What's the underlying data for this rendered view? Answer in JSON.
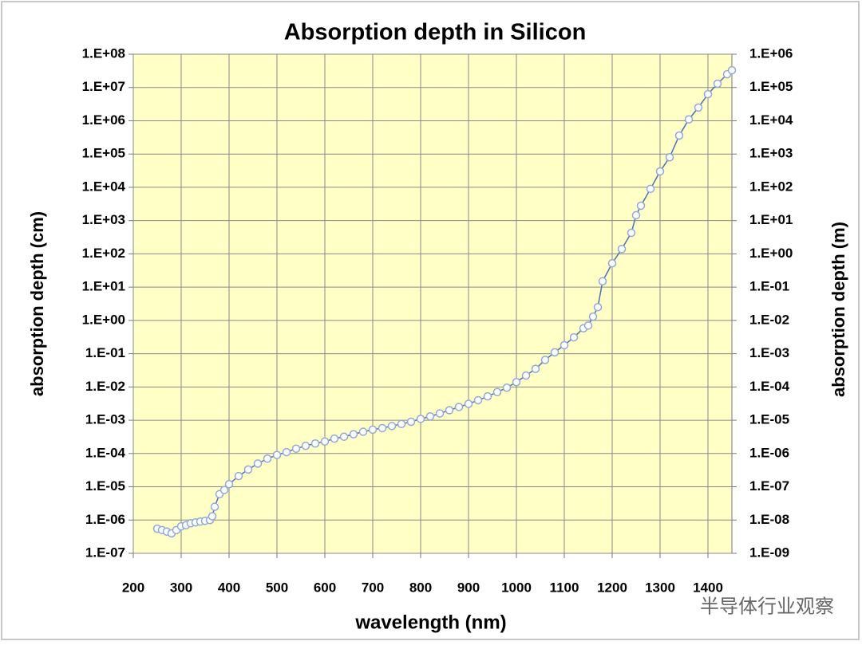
{
  "chart_data": {
    "type": "line",
    "title": "Absorption depth in Silicon",
    "x_label": "wavelength (nm)",
    "y_label": "absorption depth (cm)",
    "y2_label": "absorption depth (m)",
    "watermark": "半导体行业观察",
    "y_scale": "log",
    "grid": true,
    "color": "#4a6fb5",
    "marker_color": "#8fa9d8",
    "xlim": [
      200,
      1450
    ],
    "xticks": [
      200,
      300,
      400,
      500,
      600,
      700,
      800,
      900,
      1000,
      1100,
      1200,
      1300,
      1400
    ],
    "ylim": [
      1e-07,
      100000000.0
    ],
    "yticks": [
      {
        "value": 1e-07,
        "label": "1.E-07"
      },
      {
        "value": 1e-06,
        "label": "1.E-06"
      },
      {
        "value": 1e-05,
        "label": "1.E-05"
      },
      {
        "value": 0.0001,
        "label": "1.E-04"
      },
      {
        "value": 0.001,
        "label": "1.E-03"
      },
      {
        "value": 0.01,
        "label": "1.E-02"
      },
      {
        "value": 0.1,
        "label": "1.E-01"
      },
      {
        "value": 1,
        "label": "1.E+00"
      },
      {
        "value": 10,
        "label": "1.E+01"
      },
      {
        "value": 100,
        "label": "1.E+02"
      },
      {
        "value": 1000,
        "label": "1.E+03"
      },
      {
        "value": 10000,
        "label": "1.E+04"
      },
      {
        "value": 100000,
        "label": "1.E+05"
      },
      {
        "value": 1000000,
        "label": "1.E+06"
      },
      {
        "value": 10000000,
        "label": "1.E+07"
      },
      {
        "value": 100000000,
        "label": "1.E+08"
      }
    ],
    "y2lim": [
      1e-09,
      1000000.0
    ],
    "y2ticks": [
      {
        "value": 1e-09,
        "label": "1.E-09"
      },
      {
        "value": 1e-08,
        "label": "1.E-08"
      },
      {
        "value": 1e-07,
        "label": "1.E-07"
      },
      {
        "value": 1e-06,
        "label": "1.E-06"
      },
      {
        "value": 1e-05,
        "label": "1.E-05"
      },
      {
        "value": 0.0001,
        "label": "1.E-04"
      },
      {
        "value": 0.001,
        "label": "1.E-03"
      },
      {
        "value": 0.01,
        "label": "1.E-02"
      },
      {
        "value": 0.1,
        "label": "1.E-01"
      },
      {
        "value": 1,
        "label": "1.E+00"
      },
      {
        "value": 10,
        "label": "1.E+01"
      },
      {
        "value": 100,
        "label": "1.E+02"
      },
      {
        "value": 1000,
        "label": "1.E+03"
      },
      {
        "value": 10000,
        "label": "1.E+04"
      },
      {
        "value": 100000,
        "label": "1.E+05"
      },
      {
        "value": 1000000,
        "label": "1.E+06"
      }
    ],
    "x": [
      250,
      260,
      270,
      280,
      290,
      300,
      310,
      320,
      330,
      340,
      350,
      360,
      365,
      370,
      380,
      390,
      400,
      420,
      440,
      460,
      480,
      500,
      520,
      540,
      560,
      580,
      600,
      620,
      640,
      660,
      680,
      700,
      720,
      740,
      760,
      780,
      800,
      820,
      840,
      860,
      880,
      900,
      920,
      940,
      960,
      980,
      1000,
      1020,
      1040,
      1060,
      1080,
      1100,
      1120,
      1140,
      1150,
      1160,
      1170,
      1180,
      1200,
      1220,
      1240,
      1250,
      1260,
      1280,
      1300,
      1320,
      1340,
      1360,
      1380,
      1400,
      1420,
      1440,
      1450
    ],
    "values": [
      5.5e-07,
      5e-07,
      4.5e-07,
      4e-07,
      5e-07,
      6.5e-07,
      7e-07,
      8e-07,
      8.5e-07,
      9e-07,
      9.5e-07,
      1e-06,
      1.3e-06,
      2.5e-06,
      6e-06,
      8e-06,
      1.2e-05,
      2.1e-05,
      3.3e-05,
      5e-05,
      7e-05,
      9e-05,
      0.00011,
      0.00014,
      0.00017,
      0.0002,
      0.00023,
      0.00028,
      0.00032,
      0.00038,
      0.00045,
      0.00052,
      0.00058,
      0.00067,
      0.00077,
      0.0009,
      0.0011,
      0.0013,
      0.0016,
      0.002,
      0.0025,
      0.0031,
      0.004,
      0.0052,
      0.007,
      0.0095,
      0.014,
      0.022,
      0.035,
      0.065,
      0.11,
      0.18,
      0.31,
      0.58,
      0.7,
      1.3,
      2.5,
      15,
      52,
      140,
      430,
      1450,
      2800,
      9000,
      30000,
      80000,
      360000,
      1100000,
      2500000,
      6300000,
      13000000,
      25000000,
      33000000
    ]
  }
}
